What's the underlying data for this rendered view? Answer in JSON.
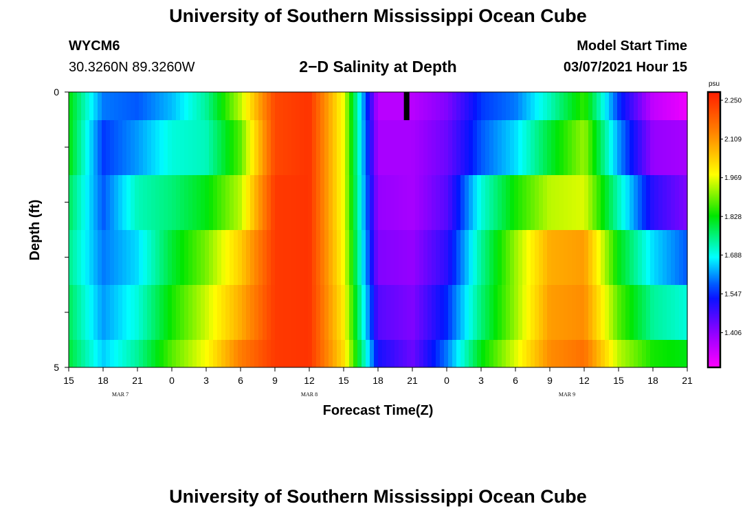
{
  "header": {
    "title_top": "University of Southern Mississippi Ocean Cube",
    "title_bottom": "University of Southern Mississippi Ocean Cube",
    "station_id": "WYCM6",
    "coordinates": "30.3260N 89.3260W",
    "chart_title": "2−D Salinity at Depth",
    "model_start_label": "Model Start Time",
    "model_start_value": "03/07/2021 Hour 15"
  },
  "chart_data": {
    "type": "heatmap",
    "title": "2−D Salinity at Depth",
    "xlabel": "Forecast Time(Z)",
    "ylabel": "Depth (ft)",
    "x_tick_labels": [
      "15",
      "18",
      "21",
      "0",
      "3",
      "6",
      "9",
      "12",
      "15",
      "18",
      "21",
      "0",
      "3",
      "6",
      "9",
      "12",
      "15",
      "18",
      "21"
    ],
    "x_date_labels": [
      {
        "text": "MAR 7",
        "at_tick": 1.5
      },
      {
        "text": "MAR 8",
        "at_tick": 7
      },
      {
        "text": "MAR 9",
        "at_tick": 14.5
      }
    ],
    "y_tick_labels": [
      "0",
      "5"
    ],
    "ylim": [
      0,
      5
    ],
    "colorbar": {
      "unit": "psu",
      "min": 1.28,
      "max": 2.28,
      "labels": [
        "2.250",
        "2.109",
        "1.969",
        "1.828",
        "1.688",
        "1.547",
        "1.406"
      ],
      "label_values": [
        2.25,
        2.109,
        1.969,
        1.828,
        1.688,
        1.547,
        1.406
      ]
    },
    "time_hours": [
      0,
      3,
      6,
      9,
      12,
      15,
      18,
      21,
      24,
      27,
      30,
      33,
      36,
      39,
      42,
      45,
      48,
      51,
      54
    ],
    "depth_layers": [
      "0-0.5",
      "0.5-1.5",
      "1.5-2.5",
      "2.5-3.5",
      "3.5-4.5",
      "4.5-5"
    ],
    "salinity_rows": [
      [
        1.83,
        1.6,
        1.58,
        1.64,
        1.74,
        1.94,
        2.22,
        2.25,
        1.97,
        1.36,
        1.36,
        1.42,
        1.56,
        1.6,
        1.72,
        1.86,
        1.56,
        1.35,
        1.3
      ],
      [
        1.83,
        1.56,
        1.62,
        1.7,
        1.72,
        1.88,
        2.22,
        2.25,
        1.97,
        1.38,
        1.38,
        1.44,
        1.58,
        1.66,
        1.8,
        1.92,
        1.62,
        1.4,
        1.38
      ],
      [
        1.78,
        1.58,
        1.72,
        1.76,
        1.82,
        1.94,
        2.24,
        2.25,
        1.97,
        1.4,
        1.38,
        1.46,
        1.7,
        1.84,
        1.94,
        1.96,
        1.72,
        1.5,
        1.42
      ],
      [
        1.75,
        1.6,
        1.66,
        1.8,
        1.9,
        2.04,
        2.24,
        2.25,
        1.98,
        1.42,
        1.4,
        1.5,
        1.74,
        1.92,
        2.08,
        2.1,
        1.82,
        1.66,
        1.58
      ],
      [
        1.78,
        1.62,
        1.7,
        1.84,
        1.95,
        2.08,
        2.24,
        2.25,
        2.0,
        1.46,
        1.42,
        1.55,
        1.76,
        1.92,
        2.1,
        2.12,
        1.88,
        1.74,
        1.7
      ],
      [
        1.8,
        1.65,
        1.74,
        1.88,
        1.98,
        2.14,
        2.24,
        2.25,
        2.02,
        1.52,
        1.44,
        1.6,
        1.82,
        1.96,
        2.12,
        2.16,
        1.94,
        1.84,
        1.82
      ]
    ],
    "marker": {
      "time_hour": 29.5,
      "depth_layer": 0,
      "color": "#000000"
    },
    "grid": false,
    "legend": "colorbar-right"
  }
}
